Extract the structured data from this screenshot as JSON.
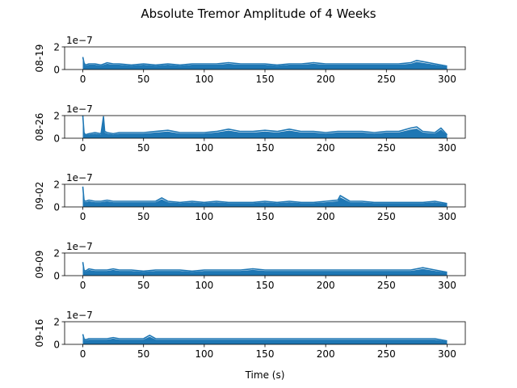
{
  "title": "Absolute Tremor Amplitude of 4 Weeks",
  "xlabel": "Time (s)",
  "chart_data": {
    "type": "line",
    "title": "Absolute Tremor Amplitude of 4 Weeks",
    "xlabel": "Time (s)",
    "xlim": [
      -15,
      315
    ],
    "ylim": [
      0,
      2
    ],
    "y_scale_label": "1e−7",
    "x_ticks": [
      0,
      50,
      100,
      150,
      200,
      250,
      300
    ],
    "y_ticks": [
      0,
      2
    ],
    "line_color": "#1f77b4",
    "grid": false,
    "panels": [
      {
        "ylabel": "08-19",
        "x": [
          0,
          1,
          2,
          5,
          10,
          15,
          20,
          25,
          30,
          40,
          50,
          60,
          70,
          80,
          90,
          100,
          110,
          120,
          130,
          140,
          150,
          160,
          170,
          180,
          190,
          200,
          210,
          220,
          230,
          240,
          250,
          260,
          270,
          275,
          280,
          290,
          300
        ],
        "values": [
          1.1,
          0.6,
          0.4,
          0.5,
          0.5,
          0.4,
          0.6,
          0.5,
          0.5,
          0.4,
          0.5,
          0.4,
          0.5,
          0.4,
          0.5,
          0.5,
          0.5,
          0.6,
          0.5,
          0.5,
          0.5,
          0.4,
          0.5,
          0.5,
          0.6,
          0.5,
          0.5,
          0.5,
          0.5,
          0.5,
          0.5,
          0.5,
          0.6,
          0.8,
          0.7,
          0.5,
          0.3
        ]
      },
      {
        "ylabel": "08-26",
        "x": [
          0,
          1,
          2,
          5,
          10,
          15,
          17,
          18,
          20,
          25,
          30,
          40,
          50,
          60,
          70,
          80,
          90,
          100,
          110,
          120,
          130,
          140,
          150,
          160,
          170,
          180,
          190,
          200,
          210,
          220,
          230,
          240,
          250,
          260,
          270,
          275,
          280,
          290,
          295,
          300
        ],
        "values": [
          2.0,
          0.5,
          0.3,
          0.4,
          0.5,
          0.4,
          1.9,
          0.6,
          0.5,
          0.4,
          0.5,
          0.5,
          0.5,
          0.6,
          0.7,
          0.5,
          0.5,
          0.5,
          0.6,
          0.8,
          0.6,
          0.6,
          0.7,
          0.6,
          0.8,
          0.6,
          0.6,
          0.5,
          0.6,
          0.6,
          0.6,
          0.5,
          0.6,
          0.6,
          0.9,
          1.0,
          0.6,
          0.5,
          0.9,
          0.3
        ]
      },
      {
        "ylabel": "09-02",
        "x": [
          0,
          1,
          2,
          5,
          10,
          15,
          20,
          25,
          30,
          40,
          50,
          60,
          65,
          70,
          80,
          90,
          100,
          110,
          120,
          130,
          140,
          150,
          160,
          170,
          180,
          190,
          200,
          210,
          212,
          220,
          230,
          240,
          250,
          260,
          270,
          280,
          290,
          300
        ],
        "values": [
          1.8,
          0.6,
          0.5,
          0.6,
          0.5,
          0.5,
          0.6,
          0.5,
          0.5,
          0.5,
          0.5,
          0.5,
          0.8,
          0.5,
          0.4,
          0.5,
          0.4,
          0.5,
          0.4,
          0.4,
          0.4,
          0.5,
          0.4,
          0.5,
          0.4,
          0.4,
          0.5,
          0.6,
          1.0,
          0.5,
          0.5,
          0.4,
          0.4,
          0.4,
          0.4,
          0.4,
          0.5,
          0.3
        ]
      },
      {
        "ylabel": "09-09",
        "x": [
          0,
          1,
          2,
          5,
          10,
          15,
          20,
          25,
          30,
          40,
          50,
          60,
          70,
          80,
          90,
          100,
          110,
          120,
          130,
          140,
          150,
          160,
          170,
          180,
          190,
          200,
          210,
          220,
          230,
          240,
          250,
          260,
          270,
          280,
          290,
          300
        ],
        "values": [
          1.2,
          0.5,
          0.4,
          0.6,
          0.5,
          0.5,
          0.5,
          0.6,
          0.5,
          0.5,
          0.4,
          0.5,
          0.5,
          0.5,
          0.4,
          0.5,
          0.5,
          0.5,
          0.5,
          0.6,
          0.5,
          0.5,
          0.5,
          0.5,
          0.5,
          0.5,
          0.5,
          0.5,
          0.5,
          0.5,
          0.5,
          0.5,
          0.5,
          0.7,
          0.5,
          0.3
        ]
      },
      {
        "ylabel": "09-16",
        "x": [
          0,
          1,
          2,
          5,
          10,
          15,
          20,
          25,
          30,
          40,
          50,
          55,
          60,
          70,
          80,
          90,
          100,
          110,
          120,
          130,
          140,
          150,
          160,
          170,
          180,
          190,
          200,
          210,
          220,
          230,
          240,
          250,
          260,
          270,
          280,
          290,
          300
        ],
        "values": [
          0.9,
          0.5,
          0.4,
          0.5,
          0.5,
          0.5,
          0.5,
          0.6,
          0.5,
          0.5,
          0.5,
          0.8,
          0.5,
          0.5,
          0.5,
          0.5,
          0.5,
          0.5,
          0.5,
          0.5,
          0.5,
          0.5,
          0.5,
          0.5,
          0.5,
          0.5,
          0.5,
          0.5,
          0.5,
          0.5,
          0.5,
          0.5,
          0.5,
          0.5,
          0.5,
          0.5,
          0.3
        ]
      }
    ]
  }
}
